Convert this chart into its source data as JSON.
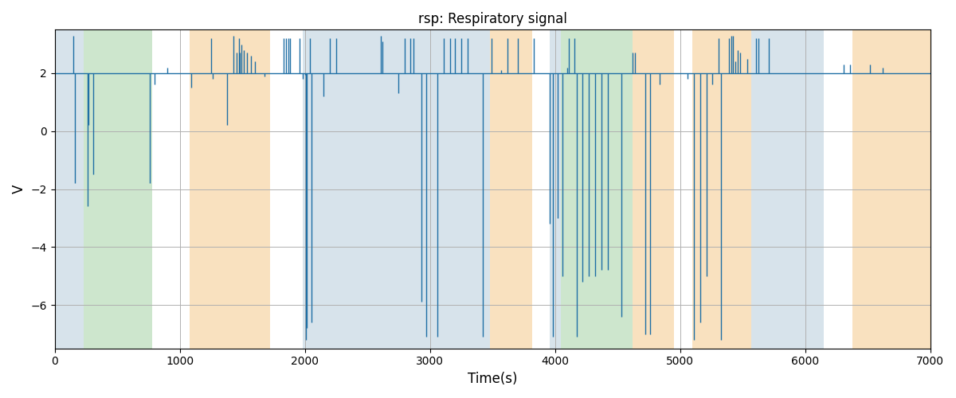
{
  "title": "rsp: Respiratory signal",
  "xlabel": "Time(s)",
  "ylabel": "V",
  "xlim": [
    0,
    7000
  ],
  "ylim": [
    -7.5,
    3.5
  ],
  "baseline": 2.0,
  "bg_regions": [
    {
      "xstart": 0,
      "xend": 230,
      "color": "#b0c8d8",
      "alpha": 0.5
    },
    {
      "xstart": 230,
      "xend": 780,
      "color": "#90c890",
      "alpha": 0.45
    },
    {
      "xstart": 1080,
      "xend": 1720,
      "color": "#f5c580",
      "alpha": 0.5
    },
    {
      "xstart": 1980,
      "xend": 3480,
      "color": "#b0c8d8",
      "alpha": 0.5
    },
    {
      "xstart": 3480,
      "xend": 3820,
      "color": "#f5c580",
      "alpha": 0.5
    },
    {
      "xstart": 3960,
      "xend": 4050,
      "color": "#b0c8d8",
      "alpha": 0.5
    },
    {
      "xstart": 4050,
      "xend": 4620,
      "color": "#90c890",
      "alpha": 0.45
    },
    {
      "xstart": 4620,
      "xend": 4950,
      "color": "#f5c580",
      "alpha": 0.5
    },
    {
      "xstart": 5100,
      "xend": 5570,
      "color": "#f5c580",
      "alpha": 0.5
    },
    {
      "xstart": 5570,
      "xend": 6150,
      "color": "#b0c8d8",
      "alpha": 0.5
    },
    {
      "xstart": 6380,
      "xend": 7000,
      "color": "#f5c580",
      "alpha": 0.5
    }
  ],
  "spikes": [
    [
      150,
      3.3
    ],
    [
      160,
      -1.8
    ],
    [
      260,
      -2.6
    ],
    [
      270,
      0.2
    ],
    [
      310,
      -1.5
    ],
    [
      760,
      -1.8
    ],
    [
      800,
      1.6
    ],
    [
      900,
      2.2
    ],
    [
      1090,
      1.5
    ],
    [
      1250,
      3.2
    ],
    [
      1260,
      1.8
    ],
    [
      1380,
      0.2
    ],
    [
      1430,
      3.3
    ],
    [
      1455,
      2.7
    ],
    [
      1470,
      3.2
    ],
    [
      1480,
      2.7
    ],
    [
      1490,
      3.0
    ],
    [
      1510,
      2.8
    ],
    [
      1540,
      2.7
    ],
    [
      1570,
      2.6
    ],
    [
      1600,
      2.4
    ],
    [
      1640,
      2.0
    ],
    [
      1680,
      1.9
    ],
    [
      1830,
      3.2
    ],
    [
      1850,
      3.2
    ],
    [
      1870,
      3.2
    ],
    [
      1880,
      3.2
    ],
    [
      1960,
      3.2
    ],
    [
      1985,
      1.8
    ],
    [
      2000,
      1.95
    ],
    [
      2010,
      -7.2
    ],
    [
      2015,
      -6.8
    ],
    [
      2040,
      3.2
    ],
    [
      2050,
      -6.6
    ],
    [
      2150,
      1.2
    ],
    [
      2200,
      3.2
    ],
    [
      2250,
      3.2
    ],
    [
      2610,
      3.3
    ],
    [
      2620,
      3.1
    ],
    [
      2750,
      1.3
    ],
    [
      2800,
      3.2
    ],
    [
      2840,
      3.2
    ],
    [
      2870,
      3.2
    ],
    [
      2930,
      -5.9
    ],
    [
      2970,
      -7.1
    ],
    [
      3000,
      2.0
    ],
    [
      3060,
      -7.1
    ],
    [
      3110,
      3.2
    ],
    [
      3160,
      3.2
    ],
    [
      3200,
      3.2
    ],
    [
      3250,
      3.2
    ],
    [
      3300,
      3.2
    ],
    [
      3420,
      -7.1
    ],
    [
      3490,
      3.2
    ],
    [
      3570,
      2.1
    ],
    [
      3620,
      3.2
    ],
    [
      3700,
      3.2
    ],
    [
      3830,
      3.2
    ],
    [
      3960,
      -3.2
    ],
    [
      3985,
      -7.1
    ],
    [
      4020,
      -3.0
    ],
    [
      4060,
      -5.0
    ],
    [
      4095,
      2.2
    ],
    [
      4110,
      3.2
    ],
    [
      4155,
      3.2
    ],
    [
      4175,
      -7.1
    ],
    [
      4220,
      -5.2
    ],
    [
      4270,
      -5.0
    ],
    [
      4320,
      -5.0
    ],
    [
      4370,
      -4.8
    ],
    [
      4420,
      -4.8
    ],
    [
      4530,
      -6.4
    ],
    [
      4620,
      2.7
    ],
    [
      4640,
      2.7
    ],
    [
      4720,
      -7.0
    ],
    [
      4760,
      -7.0
    ],
    [
      4840,
      1.6
    ],
    [
      5060,
      1.8
    ],
    [
      5110,
      -7.2
    ],
    [
      5160,
      -6.6
    ],
    [
      5210,
      -5.0
    ],
    [
      5260,
      1.6
    ],
    [
      5310,
      3.2
    ],
    [
      5330,
      -7.2
    ],
    [
      5390,
      3.2
    ],
    [
      5410,
      3.3
    ],
    [
      5425,
      3.3
    ],
    [
      5440,
      2.4
    ],
    [
      5460,
      2.8
    ],
    [
      5480,
      2.7
    ],
    [
      5540,
      2.5
    ],
    [
      5610,
      3.2
    ],
    [
      5625,
      3.2
    ],
    [
      5710,
      3.2
    ],
    [
      6310,
      2.3
    ],
    [
      6360,
      2.3
    ],
    [
      6520,
      2.3
    ],
    [
      6620,
      2.2
    ]
  ],
  "line_color": "#1f6fa5",
  "line_width": 1.0,
  "grid_color": "#b0b0b0",
  "yticks": [
    2,
    0,
    -2,
    -4,
    -6
  ],
  "xticks": [
    0,
    1000,
    2000,
    3000,
    4000,
    5000,
    6000,
    7000
  ]
}
